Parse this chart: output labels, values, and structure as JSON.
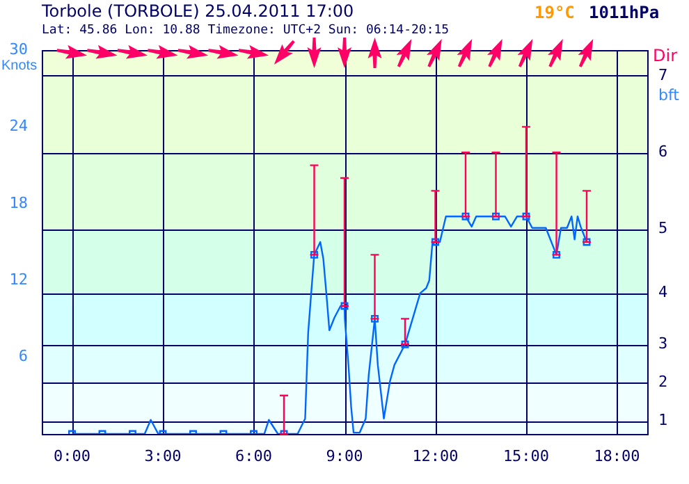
{
  "chart_data": {
    "type": "line",
    "title": "Torbole (TORBOLE) 25.04.2011 17:00",
    "subtitle": "Lat: 45.86 Lon: 10.88 Timezone: UTC+2 Sun: 06:14-20:15",
    "ylabel": "Knots",
    "y2label": "bft",
    "annotations": [
      "19°C",
      "1011hPa",
      "Dir",
      "1",
      "2",
      "3",
      "4",
      "5",
      "6",
      "7"
    ],
    "xlim": [
      -1,
      19
    ],
    "xticks": [
      {
        "value": 0,
        "label": "0:00"
      },
      {
        "value": 3,
        "label": "3:00"
      },
      {
        "value": 6,
        "label": "6:00"
      },
      {
        "value": 9,
        "label": "9:00"
      },
      {
        "value": 12,
        "label": "12:00"
      },
      {
        "value": 15,
        "label": "15:00"
      },
      {
        "value": 18,
        "label": "18:00"
      }
    ],
    "ylim": [
      0,
      30
    ],
    "yticks": [
      6,
      12,
      18,
      24,
      30
    ],
    "ref_lines": [
      {
        "axis": "y",
        "value": 1
      },
      {
        "axis": "y",
        "value": 4
      },
      {
        "axis": "y",
        "value": 7
      },
      {
        "axis": "y",
        "value": 11
      },
      {
        "axis": "y",
        "value": 16
      },
      {
        "axis": "y",
        "value": 22
      },
      {
        "axis": "y",
        "value": 28
      }
    ],
    "grid": "x",
    "legend": false,
    "bands": [
      {
        "axis": "y",
        "from": 0,
        "to": 4,
        "color": "#f0ffff"
      },
      {
        "axis": "y",
        "from": 4,
        "to": 7,
        "color": "#e0ffff"
      },
      {
        "axis": "y",
        "from": 7,
        "to": 11,
        "color": "#d2ffff"
      },
      {
        "axis": "y",
        "from": 11,
        "to": 16,
        "color": "#d4ffe8"
      },
      {
        "axis": "y",
        "from": 16,
        "to": 22,
        "color": "#e0ffdc"
      },
      {
        "axis": "y",
        "from": 22,
        "to": 28,
        "color": "#e8ffd8"
      },
      {
        "axis": "y",
        "from": 28,
        "to": 30,
        "color": "#f0ffd8"
      }
    ],
    "series": [
      {
        "type": "line",
        "color": "#0066ff",
        "marker": "none",
        "x": [
          0,
          2.4,
          2.6,
          2.85,
          6.35,
          6.5,
          6.8,
          7.45,
          7.7,
          7.8,
          7.9,
          8,
          8.2,
          8.3,
          8.4,
          8.5,
          8.67,
          8.87,
          9,
          9.01,
          9.13,
          9.22,
          9.3,
          9.5,
          9.7,
          9.8,
          10,
          10.1,
          10.3,
          10.5,
          10.65,
          11,
          11.5,
          11.7,
          11.8,
          11.9,
          12,
          12.15,
          12.35,
          13,
          13.2,
          13.35,
          14,
          14.3,
          14.5,
          14.7,
          15,
          15.2,
          15.65,
          16,
          16.15,
          16.35,
          16.5,
          16.6,
          16.7,
          16.8,
          17
        ],
        "values": [
          0,
          0,
          1.1,
          0,
          0,
          1.1,
          0,
          0,
          1.2,
          7.9,
          11,
          14,
          15,
          13.7,
          11,
          8.1,
          9.1,
          10,
          10,
          9,
          5.4,
          2.1,
          0.1,
          0.1,
          1.2,
          4.6,
          9,
          5.4,
          1.2,
          4.1,
          5.4,
          7,
          11,
          11.4,
          12,
          14.8,
          15,
          15,
          17,
          17,
          16.2,
          17,
          17,
          17,
          16.2,
          17,
          17,
          16.1,
          16.1,
          14,
          16.1,
          16.1,
          17,
          15.2,
          17,
          16.2,
          15
        ]
      },
      {
        "type": "scatter",
        "color": "#0066ff",
        "marker": "square",
        "x": [
          0,
          1,
          2,
          3,
          4,
          5,
          6,
          7,
          8,
          9,
          10,
          11,
          12,
          13,
          14,
          15,
          16,
          17
        ],
        "values": [
          0,
          0,
          0,
          0,
          0,
          0,
          0,
          0,
          14,
          10,
          9,
          7,
          15,
          17,
          17,
          17,
          14,
          15
        ],
        "errors": [
          null,
          null,
          null,
          null,
          null,
          null,
          null,
          [
            0,
            3
          ],
          [
            14,
            21
          ],
          [
            10,
            20
          ],
          [
            9,
            14
          ],
          [
            7,
            9
          ],
          [
            15,
            19
          ],
          [
            17,
            22
          ],
          [
            17,
            22
          ],
          [
            17,
            24
          ],
          [
            14,
            22
          ],
          [
            15,
            19
          ]
        ]
      }
    ]
  }
}
